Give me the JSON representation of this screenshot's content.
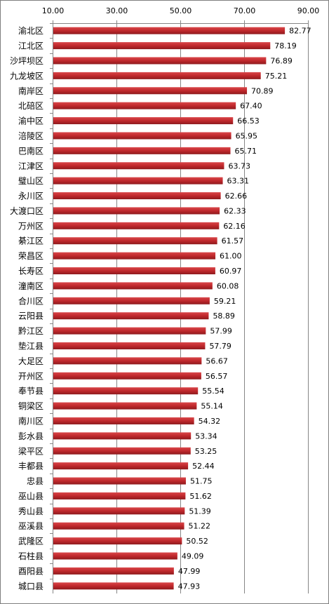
{
  "chart_data": {
    "type": "bar",
    "orientation": "horizontal",
    "categories": [
      "渝北区",
      "江北区",
      "沙坪坝区",
      "九龙坡区",
      "南岸区",
      "北碚区",
      "渝中区",
      "涪陵区",
      "巴南区",
      "江津区",
      "璧山区",
      "永川区",
      "大渡口区",
      "万州区",
      "綦江区",
      "荣昌区",
      "长寿区",
      "潼南区",
      "合川区",
      "云阳县",
      "黔江区",
      "垫江县",
      "大足区",
      "开州区",
      "奉节县",
      "铜梁区",
      "南川区",
      "彭水县",
      "梁平区",
      "丰都县",
      "忠县",
      "巫山县",
      "秀山县",
      "巫溪县",
      "武隆区",
      "石柱县",
      "酉阳县",
      "城口县"
    ],
    "values": [
      82.77,
      78.19,
      76.89,
      75.21,
      70.89,
      67.4,
      66.53,
      65.95,
      65.71,
      63.73,
      63.31,
      62.66,
      62.33,
      62.16,
      61.57,
      61.0,
      60.97,
      60.08,
      59.21,
      58.89,
      57.99,
      57.79,
      56.67,
      56.57,
      55.54,
      55.14,
      54.32,
      53.34,
      53.25,
      52.44,
      51.75,
      51.62,
      51.39,
      51.22,
      50.52,
      49.09,
      47.99,
      47.93
    ],
    "data_labels": [
      "82.77",
      "78.19",
      "76.89",
      "75.21",
      "70.89",
      "67.40",
      "66.53",
      "65.95",
      "65.71",
      "63.73",
      "63.31",
      "62.66",
      "62.33",
      "62.16",
      "61.57",
      "61.00",
      "60.97",
      "60.08",
      "59.21",
      "58.89",
      "57.99",
      "57.79",
      "56.67",
      "56.57",
      "55.54",
      "55.14",
      "54.32",
      "53.34",
      "53.25",
      "52.44",
      "51.75",
      "51.62",
      "51.39",
      "51.22",
      "50.52",
      "49.09",
      "47.99",
      "47.93"
    ],
    "x_ticks": [
      "10.00",
      "30.00",
      "50.00",
      "70.00",
      "90.00"
    ],
    "xlim": [
      10,
      90
    ],
    "x_axis_position": "top",
    "grid": true,
    "bar_color": "#c0282c",
    "title": "",
    "xlabel": "",
    "ylabel": ""
  }
}
